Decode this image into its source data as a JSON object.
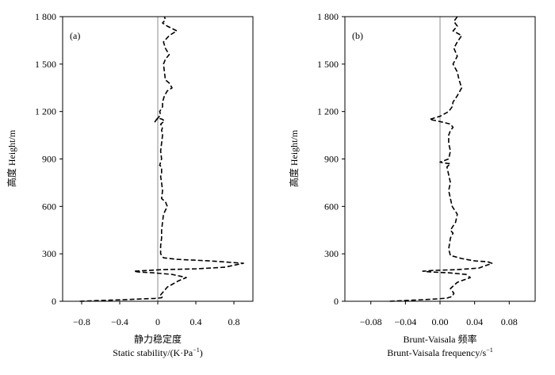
{
  "chart_data": [
    {
      "type": "line",
      "panel_label": "(a)",
      "xlabel_cn": "静力稳定度",
      "xlabel_en": "Static stability/(K·Pa",
      "xlabel_sup": "−1",
      "xlabel_tail": ")",
      "ylabel": "高度 Height/m",
      "xlim": [
        -1.0,
        1.0
      ],
      "ylim": [
        0,
        1800
      ],
      "xticks": [
        -0.8,
        -0.4,
        0,
        0.4,
        0.8
      ],
      "xtick_labels": [
        "−0.8",
        "−0.4",
        "0",
        "0.4",
        "0.8"
      ],
      "yticks": [
        0,
        300,
        600,
        900,
        1200,
        1500,
        1800
      ],
      "ytick_labels": [
        "0",
        "300",
        "600",
        "900",
        "1 200",
        "1 500",
        "1 800"
      ],
      "zero_line": 0,
      "series": [
        {
          "name": "static stability",
          "x": [
            -0.82,
            -0.6,
            -0.35,
            -0.15,
            -0.03,
            0.04,
            0.05,
            0.03,
            0.1,
            0.22,
            0.3,
            0.15,
            -0.05,
            -0.2,
            -0.25,
            0.05,
            0.4,
            0.7,
            0.9,
            0.55,
            0.2,
            0.06,
            0.03,
            0.03,
            0.04,
            0.04,
            0.05,
            0.06,
            0.1,
            0.08,
            0.04,
            0.05,
            0.04,
            0.03,
            0.04,
            0.04,
            0.02,
            0.04,
            0.03,
            0.04,
            0.05,
            0.05,
            0.04,
            0.05,
            0.03,
            0.05,
            0.07,
            0.05,
            0.0,
            -0.03,
            0.03,
            0.02,
            0.05,
            0.05,
            0.07,
            0.1,
            0.15,
            0.12,
            0.08,
            0.07,
            0.06,
            0.08,
            0.12,
            0.08,
            0.06,
            0.12,
            0.2,
            0.1,
            0.05,
            0.08,
            0.07
          ],
          "y": [
            0,
            5,
            10,
            15,
            18,
            22,
            30,
            40,
            90,
            130,
            150,
            170,
            180,
            185,
            190,
            200,
            205,
            215,
            240,
            255,
            265,
            275,
            300,
            350,
            400,
            450,
            500,
            550,
            600,
            630,
            650,
            700,
            750,
            790,
            800,
            850,
            860,
            900,
            950,
            1000,
            1050,
            1065,
            1080,
            1100,
            1120,
            1130,
            1140,
            1150,
            1160,
            1135,
            1180,
            1200,
            1230,
            1260,
            1300,
            1330,
            1350,
            1380,
            1400,
            1450,
            1500,
            1530,
            1560,
            1600,
            1640,
            1680,
            1710,
            1740,
            1760,
            1780,
            1800
          ]
        }
      ]
    },
    {
      "type": "line",
      "panel_label": "(b)",
      "xlabel_cn": "Brunt-Vaisala 频率",
      "xlabel_en": "Brunt-Vaisala frequency/s",
      "xlabel_sup": "−1",
      "xlabel_tail": "",
      "ylabel": "高度 Height/m",
      "xlim": [
        -0.11,
        0.11
      ],
      "ylim": [
        0,
        1800
      ],
      "xticks": [
        -0.08,
        -0.04,
        0.0,
        0.04,
        0.08
      ],
      "xtick_labels": [
        "−0.08",
        "−0.04",
        "0.00",
        "0.04",
        "0.08"
      ],
      "yticks": [
        0,
        300,
        600,
        900,
        1200,
        1500,
        1800
      ],
      "ytick_labels": [
        "0",
        "300",
        "600",
        "900",
        "1 200",
        "1 500",
        "1 800"
      ],
      "zero_line": 0,
      "series": [
        {
          "name": "Brunt-Vaisala frequency",
          "x": [
            -0.058,
            -0.04,
            -0.02,
            -0.003,
            0.008,
            0.014,
            0.016,
            0.012,
            0.02,
            0.035,
            0.03,
            0.01,
            -0.01,
            -0.02,
            -0.008,
            0.02,
            0.045,
            0.06,
            0.055,
            0.04,
            0.025,
            0.012,
            0.01,
            0.012,
            0.015,
            0.012,
            0.018,
            0.02,
            0.014,
            0.012,
            0.01,
            0.012,
            0.01,
            0.008,
            0.01,
            0.012,
            0.004,
            0.0,
            0.01,
            0.012,
            0.01,
            0.01,
            0.012,
            0.015,
            0.012,
            0.005,
            -0.003,
            -0.012,
            0.0,
            0.01,
            0.014,
            0.015,
            0.02,
            0.025,
            0.022,
            0.02,
            0.015,
            0.02,
            0.016,
            0.02,
            0.025,
            0.015,
            0.02,
            0.016,
            0.02
          ],
          "y": [
            0,
            5,
            10,
            15,
            20,
            30,
            50,
            80,
            120,
            150,
            170,
            180,
            185,
            190,
            195,
            200,
            210,
            240,
            250,
            255,
            270,
            290,
            330,
            400,
            430,
            450,
            500,
            550,
            600,
            650,
            700,
            750,
            800,
            850,
            860,
            870,
            875,
            880,
            900,
            950,
            1000,
            1050,
            1080,
            1100,
            1120,
            1130,
            1140,
            1150,
            1170,
            1200,
            1230,
            1260,
            1300,
            1350,
            1400,
            1450,
            1500,
            1550,
            1600,
            1640,
            1680,
            1710,
            1740,
            1770,
            1800
          ]
        }
      ]
    }
  ]
}
